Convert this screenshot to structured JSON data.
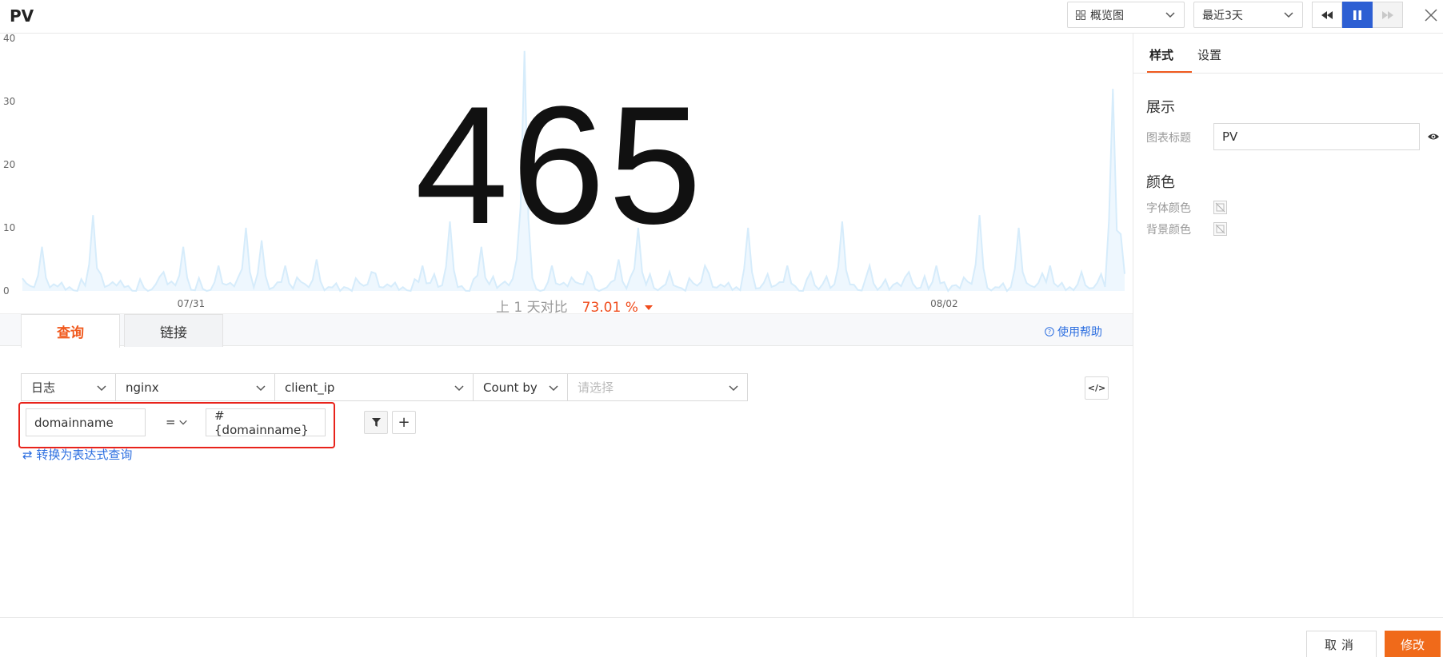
{
  "header": {
    "title": "PV",
    "view_select": "概览图",
    "time_select": "最近3天"
  },
  "colors": {
    "accent": "#f05a1e",
    "primary": "#2d5fd3",
    "link": "#2d6fe0",
    "danger_outline": "#e8231b",
    "series": "#d6ecfb"
  },
  "stat": {
    "value": "465",
    "compare_label": "上 1 天对比",
    "compare_value": "73.01 %",
    "compare_direction": "down"
  },
  "chart_data": {
    "type": "area",
    "yticks": [
      "0",
      "10",
      "20",
      "30",
      "40"
    ],
    "ylim": [
      0,
      40
    ],
    "xticks": [
      {
        "label": "07/31",
        "index": 43
      },
      {
        "label": "08/02",
        "index": 235
      }
    ],
    "spikes": [
      {
        "i": 5,
        "v": 7
      },
      {
        "i": 18,
        "v": 12
      },
      {
        "i": 36,
        "v": 3
      },
      {
        "i": 41,
        "v": 7
      },
      {
        "i": 50,
        "v": 4
      },
      {
        "i": 57,
        "v": 10
      },
      {
        "i": 61,
        "v": 8
      },
      {
        "i": 67,
        "v": 4
      },
      {
        "i": 75,
        "v": 5
      },
      {
        "i": 89,
        "v": 3
      },
      {
        "i": 102,
        "v": 4
      },
      {
        "i": 109,
        "v": 11
      },
      {
        "i": 117,
        "v": 7
      },
      {
        "i": 126,
        "v": 5
      },
      {
        "i": 128,
        "v": 38
      },
      {
        "i": 135,
        "v": 4
      },
      {
        "i": 144,
        "v": 3
      },
      {
        "i": 152,
        "v": 5
      },
      {
        "i": 157,
        "v": 10
      },
      {
        "i": 165,
        "v": 3
      },
      {
        "i": 174,
        "v": 4
      },
      {
        "i": 185,
        "v": 10
      },
      {
        "i": 195,
        "v": 4
      },
      {
        "i": 201,
        "v": 3
      },
      {
        "i": 209,
        "v": 11
      },
      {
        "i": 216,
        "v": 4
      },
      {
        "i": 226,
        "v": 3
      },
      {
        "i": 233,
        "v": 4
      },
      {
        "i": 244,
        "v": 12
      },
      {
        "i": 254,
        "v": 10
      },
      {
        "i": 262,
        "v": 4
      },
      {
        "i": 270,
        "v": 3
      },
      {
        "i": 278,
        "v": 32
      },
      {
        "i": 280,
        "v": 9
      }
    ],
    "point_count": 282
  },
  "query": {
    "tabs": [
      "查询",
      "链接"
    ],
    "help": "使用帮助",
    "source": "日志",
    "index": "nginx",
    "field": "client_ip",
    "agg": "Count by",
    "groupby_placeholder": "请选择",
    "code_label": "</>"
  },
  "filter": {
    "field": "domainname",
    "op": "=",
    "value": "#{domainname}",
    "add_label": "+",
    "convert_link": "⇄ 转换为表达式查询"
  },
  "panel": {
    "tabs": [
      "样式",
      "设置"
    ],
    "display_section": "展示",
    "chart_title_label": "图表标题",
    "chart_title_value": "PV",
    "color_section": "颜色",
    "font_color_label": "字体颜色",
    "bg_color_label": "背景颜色"
  },
  "footer": {
    "cancel": "取消",
    "submit": "修改"
  }
}
